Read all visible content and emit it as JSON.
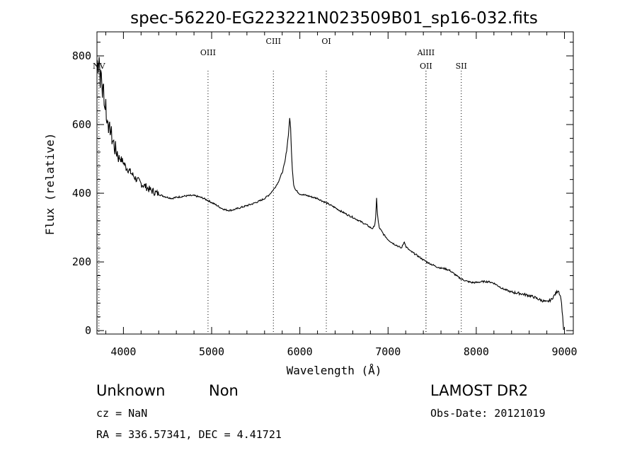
{
  "chart_data": {
    "type": "line",
    "title": "spec-56220-EG223221N023509B01_sp16-032.fits",
    "xlabel": "Wavelength (Å)",
    "ylabel": "Flux (relative)",
    "xlim": [
      3700,
      9100
    ],
    "ylim": [
      -10,
      870
    ],
    "x_ticks": [
      4000,
      5000,
      6000,
      7000,
      8000,
      9000
    ],
    "y_ticks": [
      0,
      200,
      400,
      600,
      800
    ],
    "grid": false,
    "line_color": "#000000",
    "series": [
      {
        "points": [
          [
            3700,
            790
          ],
          [
            3712,
            770
          ],
          [
            3725,
            800
          ],
          [
            3737,
            730
          ],
          [
            3750,
            745
          ],
          [
            3762,
            690
          ],
          [
            3775,
            710
          ],
          [
            3787,
            650
          ],
          [
            3800,
            665
          ],
          [
            3812,
            600
          ],
          [
            3825,
            625
          ],
          [
            3837,
            575
          ],
          [
            3850,
            590
          ],
          [
            3870,
            560
          ],
          [
            3890,
            545
          ],
          [
            3910,
            525
          ],
          [
            3930,
            520
          ],
          [
            3950,
            505
          ],
          [
            3970,
            500
          ],
          [
            4000,
            490
          ],
          [
            4030,
            475
          ],
          [
            4060,
            468
          ],
          [
            4100,
            455
          ],
          [
            4150,
            440
          ],
          [
            4200,
            428
          ],
          [
            4250,
            420
          ],
          [
            4300,
            410
          ],
          [
            4350,
            404
          ],
          [
            4400,
            397
          ],
          [
            4450,
            392
          ],
          [
            4500,
            388
          ],
          [
            4550,
            385
          ],
          [
            4600,
            388
          ],
          [
            4650,
            390
          ],
          [
            4700,
            392
          ],
          [
            4750,
            393
          ],
          [
            4800,
            393
          ],
          [
            4850,
            390
          ],
          [
            4900,
            386
          ],
          [
            4950,
            380
          ],
          [
            5000,
            373
          ],
          [
            5050,
            366
          ],
          [
            5100,
            358
          ],
          [
            5150,
            352
          ],
          [
            5200,
            350
          ],
          [
            5250,
            352
          ],
          [
            5300,
            356
          ],
          [
            5350,
            360
          ],
          [
            5400,
            364
          ],
          [
            5450,
            368
          ],
          [
            5500,
            373
          ],
          [
            5550,
            378
          ],
          [
            5600,
            385
          ],
          [
            5650,
            395
          ],
          [
            5700,
            410
          ],
          [
            5750,
            430
          ],
          [
            5800,
            460
          ],
          [
            5830,
            490
          ],
          [
            5850,
            525
          ],
          [
            5870,
            570
          ],
          [
            5885,
            620
          ],
          [
            5895,
            590
          ],
          [
            5905,
            520
          ],
          [
            5915,
            470
          ],
          [
            5930,
            425
          ],
          [
            5950,
            410
          ],
          [
            6000,
            398
          ],
          [
            6050,
            395
          ],
          [
            6100,
            392
          ],
          [
            6150,
            388
          ],
          [
            6200,
            385
          ],
          [
            6250,
            378
          ],
          [
            6300,
            372
          ],
          [
            6350,
            365
          ],
          [
            6400,
            358
          ],
          [
            6450,
            350
          ],
          [
            6500,
            343
          ],
          [
            6550,
            336
          ],
          [
            6600,
            330
          ],
          [
            6650,
            323
          ],
          [
            6700,
            316
          ],
          [
            6750,
            309
          ],
          [
            6800,
            300
          ],
          [
            6830,
            297
          ],
          [
            6850,
            310
          ],
          [
            6860,
            330
          ],
          [
            6870,
            385
          ],
          [
            6880,
            340
          ],
          [
            6890,
            315
          ],
          [
            6900,
            300
          ],
          [
            6950,
            280
          ],
          [
            7000,
            265
          ],
          [
            7050,
            255
          ],
          [
            7100,
            248
          ],
          [
            7150,
            240
          ],
          [
            7170,
            250
          ],
          [
            7185,
            260
          ],
          [
            7200,
            245
          ],
          [
            7250,
            232
          ],
          [
            7300,
            224
          ],
          [
            7350,
            215
          ],
          [
            7400,
            206
          ],
          [
            7450,
            198
          ],
          [
            7500,
            192
          ],
          [
            7550,
            186
          ],
          [
            7600,
            182
          ],
          [
            7650,
            180
          ],
          [
            7700,
            175
          ],
          [
            7750,
            165
          ],
          [
            7800,
            155
          ],
          [
            7850,
            148
          ],
          [
            7900,
            143
          ],
          [
            7950,
            140
          ],
          [
            8000,
            140
          ],
          [
            8050,
            142
          ],
          [
            8100,
            143
          ],
          [
            8150,
            142
          ],
          [
            8200,
            138
          ],
          [
            8250,
            130
          ],
          [
            8300,
            122
          ],
          [
            8350,
            117
          ],
          [
            8400,
            112
          ],
          [
            8450,
            110
          ],
          [
            8500,
            108
          ],
          [
            8550,
            105
          ],
          [
            8600,
            102
          ],
          [
            8650,
            98
          ],
          [
            8700,
            92
          ],
          [
            8750,
            87
          ],
          [
            8800,
            83
          ],
          [
            8850,
            90
          ],
          [
            8900,
            108
          ],
          [
            8930,
            118
          ],
          [
            8960,
            95
          ],
          [
            8980,
            40
          ],
          [
            8990,
            2
          ]
        ]
      }
    ],
    "lines": [
      {
        "label": "OIII",
        "x": 4959,
        "label_row": 1
      },
      {
        "label": "CIII",
        "x": 5700,
        "label_row": 0
      },
      {
        "label": "OI",
        "x": 6300,
        "label_row": 0
      },
      {
        "label": "AlIII",
        "x": 7430,
        "label_row": 1
      },
      {
        "label": "OII",
        "x": 7430,
        "label_row": 2
      },
      {
        "label": "SII",
        "x": 7830,
        "label_row": 2
      },
      {
        "label": "NV",
        "x": 3722,
        "label_row": 2
      }
    ]
  },
  "footer": {
    "class_label": "Unknown",
    "subclass_label": "Non",
    "survey": "LAMOST DR2",
    "cz": "cz = NaN",
    "obs_date": "Obs-Date: 20121019",
    "coords": "RA = 336.57341, DEC =   4.41721"
  }
}
